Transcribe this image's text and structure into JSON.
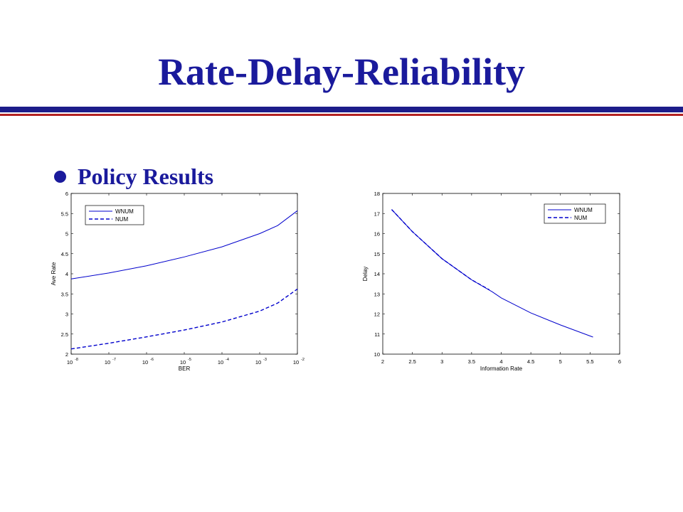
{
  "slide": {
    "title": "Rate-Delay-Reliability",
    "bullet": "Policy Results"
  },
  "colors": {
    "title": "#1a1a9c",
    "rule_blue": "#1c1c8a",
    "rule_red": "#b22222",
    "series": "#0000cc"
  },
  "chart_data": [
    {
      "type": "line",
      "title": "",
      "xlabel": "BER",
      "ylabel": "Ave Rate",
      "xscale": "log",
      "xlim": [
        1e-08,
        0.01
      ],
      "ylim": [
        2,
        6
      ],
      "grid": false,
      "legend_placement": "top-left",
      "x_ticks": [
        {
          "base": "10",
          "exp": "-8"
        },
        {
          "base": "10",
          "exp": "-7"
        },
        {
          "base": "10",
          "exp": "-6"
        },
        {
          "base": "10",
          "exp": "-5"
        },
        {
          "base": "10",
          "exp": "-4"
        },
        {
          "base": "10",
          "exp": "-3"
        },
        {
          "base": "10",
          "exp": "-2"
        }
      ],
      "y_ticks": [
        "2",
        "2.5",
        "3",
        "3.5",
        "4",
        "4.5",
        "5",
        "5.5",
        "6"
      ],
      "series": [
        {
          "name": "WNUM",
          "style": "solid",
          "x": [
            1e-08,
            1e-07,
            1e-06,
            1e-05,
            0.0001,
            0.001,
            0.003,
            0.01
          ],
          "y": [
            3.87,
            4.02,
            4.2,
            4.42,
            4.67,
            5.0,
            5.2,
            5.57
          ]
        },
        {
          "name": "NUM",
          "style": "dashed",
          "x": [
            1e-08,
            1e-07,
            1e-06,
            1e-05,
            0.0001,
            0.001,
            0.003,
            0.01
          ],
          "y": [
            2.13,
            2.27,
            2.43,
            2.6,
            2.8,
            3.07,
            3.27,
            3.62
          ]
        }
      ]
    },
    {
      "type": "line",
      "title": "",
      "xlabel": "Information Rate",
      "ylabel": "Delay",
      "xlim": [
        2,
        6
      ],
      "ylim": [
        10,
        18
      ],
      "grid": false,
      "legend_placement": "top-right",
      "x_ticks": [
        "2",
        "2.5",
        "3",
        "3.5",
        "4",
        "4.5",
        "5",
        "5.5",
        "6"
      ],
      "y_ticks": [
        "10",
        "11",
        "12",
        "13",
        "14",
        "15",
        "16",
        "17",
        "18"
      ],
      "series": [
        {
          "name": "WNUM",
          "style": "solid",
          "x": [
            2.15,
            2.5,
            3.0,
            3.5,
            3.85,
            4.0,
            4.5,
            5.0,
            5.55
          ],
          "y": [
            17.2,
            16.1,
            14.75,
            13.7,
            13.1,
            12.8,
            12.05,
            11.45,
            10.85
          ]
        },
        {
          "name": "NUM",
          "style": "dashed",
          "x": [
            2.15,
            2.5,
            3.0,
            3.5,
            3.8
          ],
          "y": [
            17.2,
            16.1,
            14.75,
            13.7,
            13.2
          ]
        }
      ]
    }
  ]
}
